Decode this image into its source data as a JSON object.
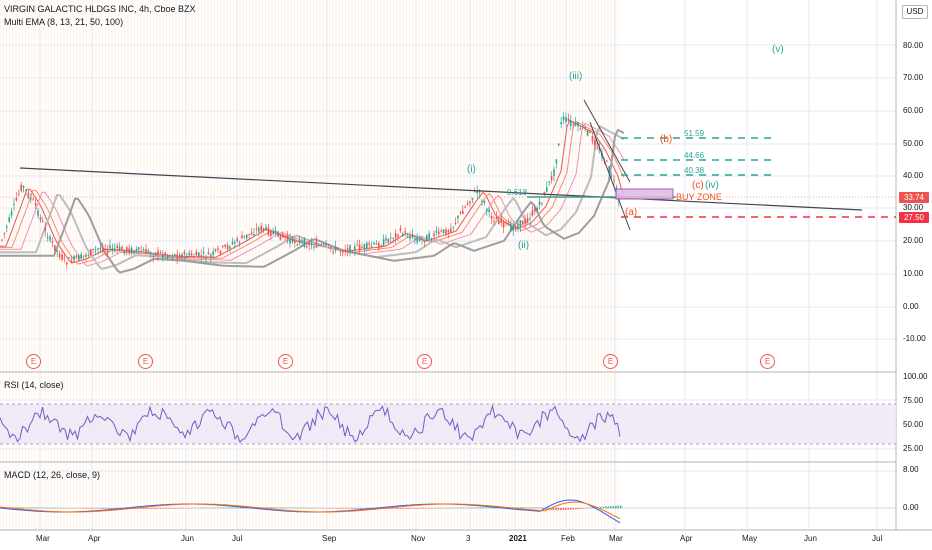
{
  "header": {
    "title": "VIRGIN GALACTIC HLDGS INC, 4h, Cboe BZX",
    "indicator": "Multi EMA (8, 13, 21, 50, 100)",
    "currency": "USD"
  },
  "price_axis": {
    "ticks": [
      "80.00",
      "70.00",
      "60.00",
      "50.00",
      "40.00",
      "30.00",
      "20.00",
      "10.00",
      "0.00",
      "-10.00"
    ],
    "last_price": "33.74",
    "target_price": "27.50"
  },
  "rsi": {
    "label": "RSI (14, close)",
    "ticks": [
      "100.00",
      "75.00",
      "50.00",
      "25.00"
    ]
  },
  "macd": {
    "label": "MACD (12, 26, close, 9)",
    "ticks": [
      "8.00",
      "0.00"
    ]
  },
  "time_axis": {
    "labels": [
      "Mar",
      "Apr",
      "Jun",
      "Jul",
      "Sep",
      "Nov",
      "3",
      "2021",
      "Feb",
      "Mar",
      "Apr",
      "May",
      "Jun",
      "Jul"
    ]
  },
  "earnings_markers": [
    "E",
    "E",
    "E",
    "E",
    "E",
    "E"
  ],
  "annotations": {
    "wave_i": "(i)",
    "wave_ii": "(ii)",
    "wave_iii": "(iii)",
    "wave_iv": "(iv)",
    "wave_v": "(v)",
    "wave_a": "(a)",
    "wave_b": "(b)",
    "wave_c": "(c)",
    "fib": "0.618",
    "buy_zone": "BUY ZONE",
    "target_1": "51.59",
    "target_2": "44.66",
    "target_3": "40.38"
  },
  "colors": {
    "grid": "#e6eaf5",
    "up": "#26a69a",
    "down": "#ef5350",
    "ema_gray": "#9e9e9e",
    "rsi_line": "#7e57c2",
    "rsi_band": "#ede7f6",
    "wave_green": "#26a69a",
    "wave_red": "#f4511e",
    "target_line": "#26a69a",
    "stop_line": "#ef3340",
    "price_tag": "#ef5350"
  }
}
